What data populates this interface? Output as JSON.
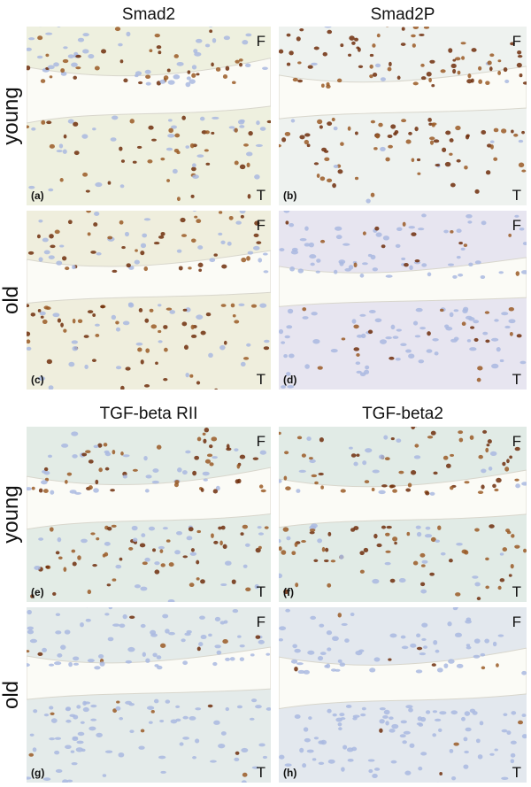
{
  "sections": [
    {
      "columns": [
        "Smad2",
        "Smad2P"
      ],
      "rows": [
        "young",
        "old"
      ],
      "panels": [
        {
          "id": "(a)",
          "top": "F",
          "bottom": "T"
        },
        {
          "id": "(b)",
          "top": "F",
          "bottom": "T"
        },
        {
          "id": "(c)",
          "top": "F",
          "bottom": "T"
        },
        {
          "id": "(d)",
          "top": "F",
          "bottom": "T"
        }
      ]
    },
    {
      "columns": [
        "TGF-beta RII",
        "TGF-beta2"
      ],
      "rows": [
        "young",
        "old"
      ],
      "panels": [
        {
          "id": "(e)",
          "top": "F",
          "bottom": "T"
        },
        {
          "id": "(f)",
          "top": "F",
          "bottom": "T"
        },
        {
          "id": "(g)",
          "top": "F",
          "bottom": "T"
        },
        {
          "id": "(h)",
          "top": "F",
          "bottom": "T"
        }
      ]
    }
  ]
}
